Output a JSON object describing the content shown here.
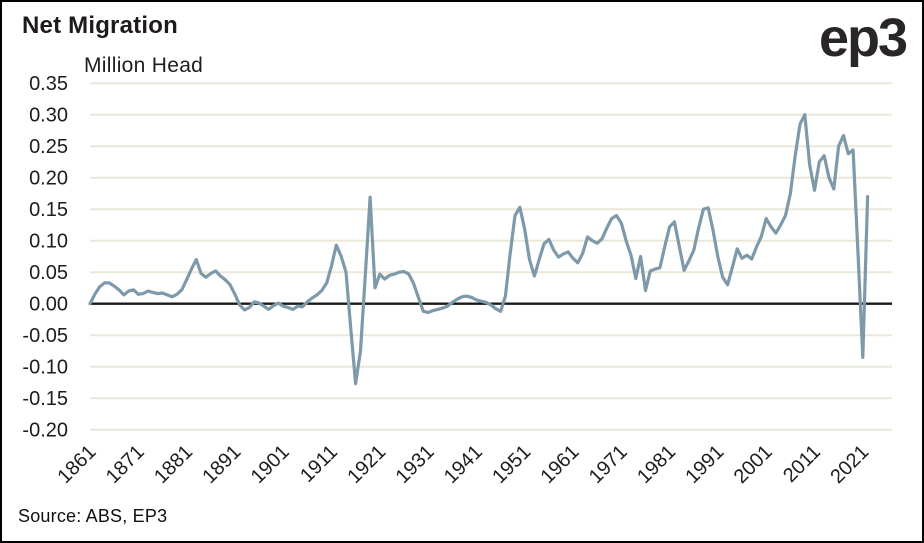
{
  "header": {
    "title": "Net Migration",
    "subtitle": "Million Head",
    "logo": "ep3"
  },
  "source": "Source: ABS, EP3",
  "chart_data": {
    "type": "line",
    "title": "Net Migration",
    "ylabel": "Million Head",
    "xlabel": "",
    "legend": "none",
    "grid": true,
    "gridline_color": "#ECE8D9",
    "zero_line_color": "#1a1a1a",
    "line_color": "#7E99AA",
    "ylim": [
      -0.2,
      0.35
    ],
    "ytick_labels": [
      "0.35",
      "0.30",
      "0.25",
      "0.20",
      "0.15",
      "0.10",
      "0.05",
      "0.00",
      "-0.05",
      "-0.10",
      "-0.15",
      "-0.20"
    ],
    "xtick_labels": [
      "1861",
      "1871",
      "1881",
      "1891",
      "1901",
      "1911",
      "1921",
      "1931",
      "1941",
      "1951",
      "1961",
      "1971",
      "1981",
      "1991",
      "2001",
      "2011",
      "2021"
    ],
    "year_start": 1861,
    "year_end": 2022,
    "frequency": "annual",
    "values": [
      0.0,
      0.015,
      0.027,
      0.033,
      0.033,
      0.028,
      0.022,
      0.014,
      0.02,
      0.022,
      0.015,
      0.016,
      0.02,
      0.018,
      0.016,
      0.017,
      0.014,
      0.011,
      0.015,
      0.022,
      0.038,
      0.055,
      0.07,
      0.048,
      0.042,
      0.048,
      0.052,
      0.044,
      0.038,
      0.03,
      0.015,
      -0.002,
      -0.01,
      -0.006,
      0.003,
      0.001,
      -0.004,
      -0.009,
      -0.003,
      0.001,
      -0.004,
      -0.006,
      -0.009,
      -0.004,
      -0.005,
      0.003,
      0.009,
      0.014,
      0.021,
      0.033,
      0.06,
      0.093,
      0.075,
      0.05,
      -0.04,
      -0.127,
      -0.075,
      0.045,
      0.169,
      0.025,
      0.047,
      0.039,
      0.045,
      0.047,
      0.05,
      0.051,
      0.047,
      0.032,
      0.01,
      -0.012,
      -0.014,
      -0.011,
      -0.009,
      -0.007,
      -0.004,
      0.002,
      0.007,
      0.011,
      0.012,
      0.01,
      0.006,
      0.004,
      0.002,
      -0.002,
      -0.008,
      -0.012,
      0.012,
      0.08,
      0.14,
      0.153,
      0.118,
      0.07,
      0.044,
      0.07,
      0.095,
      0.102,
      0.085,
      0.074,
      0.079,
      0.082,
      0.072,
      0.065,
      0.08,
      0.106,
      0.1,
      0.096,
      0.103,
      0.12,
      0.135,
      0.14,
      0.128,
      0.1,
      0.077,
      0.04,
      0.075,
      0.021,
      0.052,
      0.055,
      0.057,
      0.091,
      0.122,
      0.13,
      0.091,
      0.053,
      0.068,
      0.085,
      0.12,
      0.15,
      0.152,
      0.116,
      0.074,
      0.042,
      0.03,
      0.058,
      0.087,
      0.072,
      0.077,
      0.071,
      0.09,
      0.107,
      0.135,
      0.122,
      0.112,
      0.125,
      0.14,
      0.175,
      0.235,
      0.285,
      0.3,
      0.22,
      0.18,
      0.225,
      0.235,
      0.2,
      0.182,
      0.25,
      0.267,
      0.238,
      0.244,
      0.08,
      -0.085,
      0.17
    ]
  }
}
